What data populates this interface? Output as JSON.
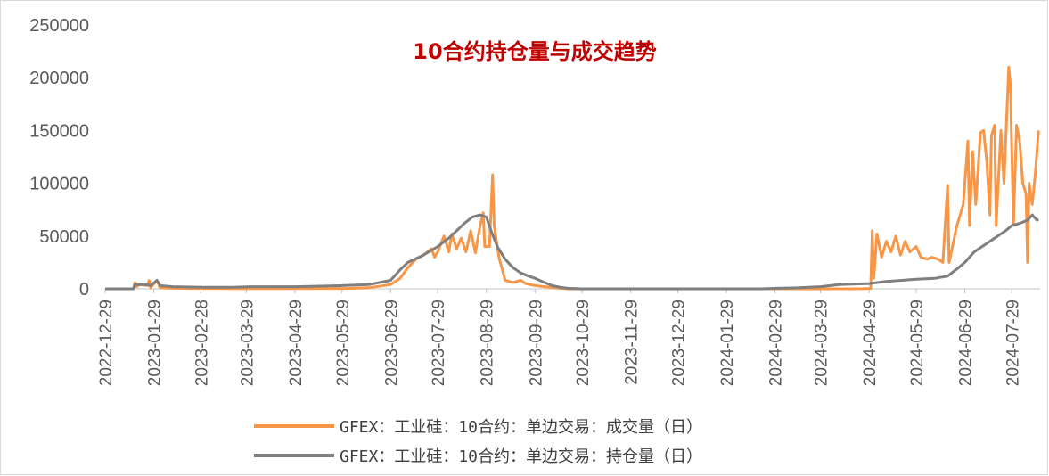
{
  "chart_data": {
    "type": "line",
    "title": "10合约持仓量与成交趋势",
    "y_ticks": [
      "250000",
      "200000",
      "150000",
      "100000",
      "50000",
      "0"
    ],
    "ylim": [
      0,
      250000
    ],
    "x_ticks": [
      "2022-12-29",
      "2023-01-29",
      "2023-02-28",
      "2023-03-29",
      "2023-04-29",
      "2023-05-29",
      "2023-06-29",
      "2023-07-29",
      "2023-08-29",
      "2023-09-29",
      "2023-10-29",
      "2023-11-29",
      "2023-12-29",
      "2024-01-29",
      "2024-02-29",
      "2024-03-29",
      "2024-04-29",
      "2024-05-29",
      "2024-06-29",
      "2024-07-29"
    ],
    "xlim": [
      "2022-12-29",
      "2024-08-16"
    ],
    "grid": false,
    "legend_position": "bottom",
    "series": [
      {
        "name": "GFEX：工业硅：10合约：单边交易：成交量（日）",
        "color": "#f79646",
        "points": [
          [
            "2022-12-29",
            0
          ],
          [
            "2023-01-16",
            0
          ],
          [
            "2023-01-17",
            6000
          ],
          [
            "2023-01-18",
            2000
          ],
          [
            "2023-01-20",
            4000
          ],
          [
            "2023-01-25",
            3000
          ],
          [
            "2023-01-26",
            8000
          ],
          [
            "2023-01-27",
            1000
          ],
          [
            "2023-01-31",
            8000
          ],
          [
            "2023-02-02",
            1000
          ],
          [
            "2023-02-10",
            500
          ],
          [
            "2023-03-01",
            300
          ],
          [
            "2023-04-01",
            200
          ],
          [
            "2023-06-01",
            300
          ],
          [
            "2023-06-15",
            1000
          ],
          [
            "2023-06-29",
            4000
          ],
          [
            "2023-07-05",
            10000
          ],
          [
            "2023-07-10",
            20000
          ],
          [
            "2023-07-15",
            28000
          ],
          [
            "2023-07-20",
            32000
          ],
          [
            "2023-07-25",
            38000
          ],
          [
            "2023-07-27",
            30000
          ],
          [
            "2023-07-29",
            35000
          ],
          [
            "2023-08-02",
            50000
          ],
          [
            "2023-08-05",
            35000
          ],
          [
            "2023-08-07",
            52000
          ],
          [
            "2023-08-10",
            38000
          ],
          [
            "2023-08-13",
            48000
          ],
          [
            "2023-08-16",
            35000
          ],
          [
            "2023-08-19",
            55000
          ],
          [
            "2023-08-22",
            34000
          ],
          [
            "2023-08-25",
            60000
          ],
          [
            "2023-08-27",
            72000
          ],
          [
            "2023-08-28",
            40000
          ],
          [
            "2023-08-31",
            40000
          ],
          [
            "2023-09-02",
            108000
          ],
          [
            "2023-09-03",
            60000
          ],
          [
            "2023-09-06",
            30000
          ],
          [
            "2023-09-10",
            8000
          ],
          [
            "2023-09-15",
            6000
          ],
          [
            "2023-09-20",
            8000
          ],
          [
            "2023-09-23",
            5000
          ],
          [
            "2023-09-29",
            3000
          ],
          [
            "2023-10-05",
            2000
          ],
          [
            "2023-10-15",
            500
          ],
          [
            "2023-10-20",
            0
          ],
          [
            "2024-03-29",
            0
          ],
          [
            "2024-04-25",
            100
          ],
          [
            "2024-04-30",
            300
          ],
          [
            "2024-05-01",
            55000
          ],
          [
            "2024-05-02",
            10000
          ],
          [
            "2024-05-04",
            52000
          ],
          [
            "2024-05-07",
            30000
          ],
          [
            "2024-05-10",
            45000
          ],
          [
            "2024-05-13",
            35000
          ],
          [
            "2024-05-16",
            50000
          ],
          [
            "2024-05-19",
            32000
          ],
          [
            "2024-05-22",
            45000
          ],
          [
            "2024-05-25",
            35000
          ],
          [
            "2024-05-29",
            40000
          ],
          [
            "2024-06-01",
            30000
          ],
          [
            "2024-06-05",
            28000
          ],
          [
            "2024-06-08",
            30000
          ],
          [
            "2024-06-12",
            28000
          ],
          [
            "2024-06-15",
            25000
          ],
          [
            "2024-06-18",
            98000
          ],
          [
            "2024-06-19",
            25000
          ],
          [
            "2024-06-24",
            60000
          ],
          [
            "2024-06-28",
            80000
          ],
          [
            "2024-07-01",
            140000
          ],
          [
            "2024-07-02",
            60000
          ],
          [
            "2024-07-04",
            130000
          ],
          [
            "2024-07-06",
            80000
          ],
          [
            "2024-07-09",
            148000
          ],
          [
            "2024-07-11",
            150000
          ],
          [
            "2024-07-13",
            120000
          ],
          [
            "2024-07-15",
            70000
          ],
          [
            "2024-07-16",
            145000
          ],
          [
            "2024-07-18",
            155000
          ],
          [
            "2024-07-19",
            60000
          ],
          [
            "2024-07-22",
            150000
          ],
          [
            "2024-07-24",
            100000
          ],
          [
            "2024-07-27",
            210000
          ],
          [
            "2024-07-28",
            195000
          ],
          [
            "2024-07-30",
            60000
          ],
          [
            "2024-08-01",
            155000
          ],
          [
            "2024-08-03",
            140000
          ],
          [
            "2024-08-05",
            100000
          ],
          [
            "2024-08-07",
            90000
          ],
          [
            "2024-08-08",
            25000
          ],
          [
            "2024-08-09",
            100000
          ],
          [
            "2024-08-11",
            80000
          ],
          [
            "2024-08-13",
            110000
          ],
          [
            "2024-08-15",
            150000
          ]
        ]
      },
      {
        "name": "GFEX：工业硅：10合约：单边交易：持仓量（日）",
        "color": "#7f7f7f",
        "points": [
          [
            "2022-12-29",
            0
          ],
          [
            "2023-01-16",
            0
          ],
          [
            "2023-01-17",
            4000
          ],
          [
            "2023-01-20",
            4000
          ],
          [
            "2023-01-25",
            4000
          ],
          [
            "2023-01-27",
            3000
          ],
          [
            "2023-01-31",
            8000
          ],
          [
            "2023-02-02",
            3000
          ],
          [
            "2023-02-10",
            2000
          ],
          [
            "2023-03-01",
            1500
          ],
          [
            "2023-03-20",
            1500
          ],
          [
            "2023-04-01",
            2000
          ],
          [
            "2023-04-29",
            2000
          ],
          [
            "2023-05-29",
            3000
          ],
          [
            "2023-06-15",
            4000
          ],
          [
            "2023-06-29",
            8000
          ],
          [
            "2023-07-05",
            18000
          ],
          [
            "2023-07-10",
            25000
          ],
          [
            "2023-07-20",
            32000
          ],
          [
            "2023-07-29",
            40000
          ],
          [
            "2023-08-05",
            48000
          ],
          [
            "2023-08-10",
            55000
          ],
          [
            "2023-08-15",
            62000
          ],
          [
            "2023-08-20",
            68000
          ],
          [
            "2023-08-25",
            70000
          ],
          [
            "2023-08-29",
            68000
          ],
          [
            "2023-09-01",
            55000
          ],
          [
            "2023-09-05",
            40000
          ],
          [
            "2023-09-10",
            28000
          ],
          [
            "2023-09-15",
            20000
          ],
          [
            "2023-09-20",
            15000
          ],
          [
            "2023-09-25",
            12000
          ],
          [
            "2023-09-29",
            10000
          ],
          [
            "2023-10-05",
            6000
          ],
          [
            "2023-10-10",
            3000
          ],
          [
            "2023-10-15",
            1500
          ],
          [
            "2023-10-20",
            500
          ],
          [
            "2023-10-29",
            0
          ],
          [
            "2024-02-20",
            0
          ],
          [
            "2024-03-01",
            500
          ],
          [
            "2024-03-15",
            1000
          ],
          [
            "2024-03-29",
            2000
          ],
          [
            "2024-04-10",
            4000
          ],
          [
            "2024-04-29",
            5000
          ],
          [
            "2024-05-10",
            7000
          ],
          [
            "2024-05-29",
            9000
          ],
          [
            "2024-06-10",
            10000
          ],
          [
            "2024-06-18",
            12000
          ],
          [
            "2024-06-25",
            20000
          ],
          [
            "2024-06-29",
            25000
          ],
          [
            "2024-07-05",
            35000
          ],
          [
            "2024-07-10",
            40000
          ],
          [
            "2024-07-15",
            45000
          ],
          [
            "2024-07-20",
            50000
          ],
          [
            "2024-07-25",
            55000
          ],
          [
            "2024-07-29",
            60000
          ],
          [
            "2024-08-03",
            62000
          ],
          [
            "2024-08-08",
            65000
          ],
          [
            "2024-08-11",
            70000
          ],
          [
            "2024-08-14",
            65000
          ],
          [
            "2024-08-15",
            66000
          ]
        ]
      }
    ]
  }
}
